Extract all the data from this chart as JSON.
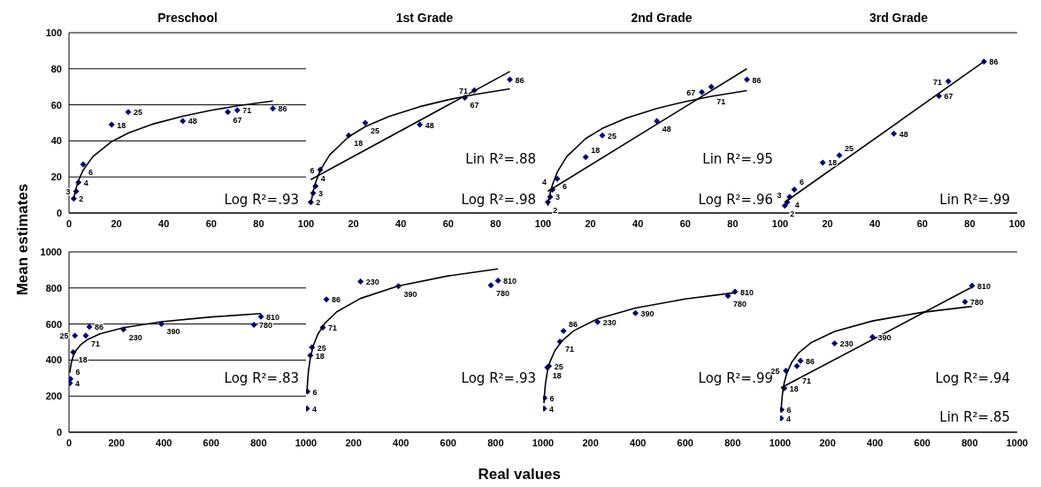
{
  "chart_data": [
    {
      "type": "scatter",
      "title": "Preschool",
      "ylabel": "Mean estimates",
      "xlim": [
        0,
        100
      ],
      "xticks": [
        0,
        20,
        40,
        60,
        80,
        100
      ],
      "ylim": [
        0,
        100
      ],
      "yticks": [
        0,
        20,
        40,
        60,
        80,
        100
      ],
      "grid": "y",
      "marker": "diamond",
      "annotations": [
        "Log R²=.93",
        {
          "text": "2",
          "x": 2,
          "y": 8
        },
        {
          "text": "3",
          "x": 3,
          "y": 12
        },
        {
          "text": "4",
          "x": 4,
          "y": 17
        },
        {
          "text": "6",
          "x": 6,
          "y": 27
        },
        {
          "text": "18",
          "x": 18,
          "y": 49
        },
        {
          "text": "25",
          "x": 25,
          "y": 56
        },
        {
          "text": "48",
          "x": 48,
          "y": 51
        },
        {
          "text": "67",
          "x": 67,
          "y": 56
        },
        {
          "text": "71",
          "x": 71,
          "y": 57
        },
        {
          "text": "86",
          "x": 86,
          "y": 58
        }
      ],
      "series": [
        {
          "color": "#000080",
          "x": [
            2,
            3,
            4,
            6,
            18,
            25,
            48,
            67,
            71,
            86
          ],
          "values": [
            8,
            12,
            17,
            27,
            49,
            56,
            51,
            56,
            57,
            58
          ]
        },
        {
          "type": "line",
          "color": "#000000",
          "marker": "none",
          "x": [
            2,
            3,
            4,
            6,
            10,
            18,
            25,
            35,
            48,
            60,
            71,
            86
          ],
          "values": [
            8,
            13.8,
            18,
            23.8,
            31.2,
            39.6,
            44.4,
            49.2,
            53.7,
            57,
            59.4,
            62.1
          ]
        }
      ]
    },
    {
      "type": "scatter",
      "title": "1st Grade",
      "xlim": [
        0,
        100
      ],
      "xticks": [
        20,
        40,
        60,
        80,
        100
      ],
      "ylim": [
        0,
        100
      ],
      "yticks": [
        0,
        20,
        40,
        60,
        80,
        100
      ],
      "tick_labels": "x",
      "grid": "y",
      "marker": "diamond",
      "annotations": [
        "Lin R²=.88",
        "Log R²=.98",
        {
          "text": "2",
          "x": 2,
          "y": 6
        },
        {
          "text": "3",
          "x": 3,
          "y": 11
        },
        {
          "text": "4",
          "x": 4,
          "y": 15
        },
        {
          "text": "6",
          "x": 6,
          "y": 24
        },
        {
          "text": "18",
          "x": 18,
          "y": 43
        },
        {
          "text": "25",
          "x": 25,
          "y": 50
        },
        {
          "text": "48",
          "x": 48,
          "y": 49
        },
        {
          "text": "67",
          "x": 67,
          "y": 64
        },
        {
          "text": "71",
          "x": 71,
          "y": 68
        },
        {
          "text": "86",
          "x": 86,
          "y": 74
        }
      ],
      "series": [
        {
          "color": "#000080",
          "x": [
            2,
            3,
            4,
            6,
            18,
            25,
            48,
            67,
            71,
            86
          ],
          "values": [
            6,
            11,
            15,
            24,
            43,
            50,
            49,
            64,
            68,
            74
          ]
        },
        {
          "type": "line",
          "color": "#000000",
          "marker": "none",
          "x": [
            2,
            3,
            4,
            6,
            10,
            18,
            25,
            35,
            48,
            60,
            71,
            86
          ],
          "values": [
            5,
            11.9,
            16.8,
            23.7,
            32.3,
            42.3,
            47.9,
            53.6,
            59,
            62.8,
            65.7,
            68.9
          ]
        },
        {
          "type": "line",
          "color": "#000000",
          "marker": "none",
          "x": [
            2,
            86
          ],
          "values": [
            18.5,
            78.5
          ]
        }
      ]
    },
    {
      "type": "scatter",
      "title": "2nd Grade",
      "xlim": [
        0,
        100
      ],
      "xticks": [
        20,
        40,
        60,
        80,
        100
      ],
      "ylim": [
        0,
        100
      ],
      "yticks": [
        0,
        20,
        40,
        60,
        80,
        100
      ],
      "tick_labels": "x",
      "grid": "y",
      "marker": "diamond",
      "annotations": [
        "Lin R²=.95",
        "Log R²=.96",
        {
          "text": "2",
          "x": 2,
          "y": 6
        },
        {
          "text": "3",
          "x": 3,
          "y": 9
        },
        {
          "text": "4",
          "x": 4,
          "y": 13
        },
        {
          "text": "6",
          "x": 6,
          "y": 19
        },
        {
          "text": "18",
          "x": 18,
          "y": 31
        },
        {
          "text": "25",
          "x": 25,
          "y": 43
        },
        {
          "text": "48",
          "x": 48,
          "y": 51
        },
        {
          "text": "67",
          "x": 67,
          "y": 67
        },
        {
          "text": "71",
          "x": 71,
          "y": 70
        },
        {
          "text": "86",
          "x": 86,
          "y": 74
        }
      ],
      "series": [
        {
          "color": "#000080",
          "x": [
            2,
            3,
            4,
            6,
            18,
            25,
            48,
            67,
            71,
            86
          ],
          "values": [
            6,
            9,
            13,
            19,
            31,
            43,
            51,
            67,
            70,
            74
          ]
        },
        {
          "type": "line",
          "color": "#000000",
          "marker": "none",
          "x": [
            2,
            3,
            4,
            6,
            10,
            18,
            25,
            35,
            48,
            60,
            71,
            86
          ],
          "values": [
            4,
            10.9,
            15.8,
            22.7,
            31.3,
            41.3,
            46.9,
            52.6,
            58,
            61.8,
            64.7,
            67.9
          ]
        },
        {
          "type": "line",
          "color": "#000000",
          "marker": "none",
          "x": [
            2,
            86
          ],
          "values": [
            12,
            80
          ]
        }
      ]
    },
    {
      "type": "scatter",
      "title": "3rd Grade",
      "xlim": [
        0,
        100
      ],
      "xticks": [
        20,
        40,
        60,
        80,
        100
      ],
      "ylim": [
        0,
        100
      ],
      "yticks": [
        0,
        20,
        40,
        60,
        80,
        100
      ],
      "tick_labels": "x",
      "grid": "y",
      "marker": "diamond",
      "annotations": [
        "Lin R²=.99",
        {
          "text": "2",
          "x": 2,
          "y": 4
        },
        {
          "text": "3",
          "x": 3,
          "y": 6
        },
        {
          "text": "4",
          "x": 4,
          "y": 9
        },
        {
          "text": "6",
          "x": 6,
          "y": 13
        },
        {
          "text": "18",
          "x": 18,
          "y": 28
        },
        {
          "text": "25",
          "x": 25,
          "y": 32
        },
        {
          "text": "48",
          "x": 48,
          "y": 44
        },
        {
          "text": "67",
          "x": 67,
          "y": 65
        },
        {
          "text": "71",
          "x": 71,
          "y": 73
        },
        {
          "text": "86",
          "x": 86,
          "y": 84
        }
      ],
      "series": [
        {
          "color": "#000080",
          "x": [
            2,
            3,
            4,
            6,
            18,
            25,
            48,
            67,
            71,
            86
          ],
          "values": [
            4,
            6,
            9,
            13,
            28,
            32,
            44,
            65,
            73,
            84
          ]
        },
        {
          "type": "line",
          "color": "#000000",
          "marker": "none",
          "x": [
            2,
            86
          ],
          "values": [
            6,
            84
          ]
        }
      ]
    },
    {
      "type": "scatter",
      "xlim": [
        0,
        1000
      ],
      "xticks": [
        0,
        200,
        400,
        600,
        800,
        1000
      ],
      "ylim": [
        0,
        1000
      ],
      "yticks": [
        0,
        200,
        400,
        600,
        800,
        1000
      ],
      "grid": "y",
      "marker": "diamond",
      "annotations": [
        "Log R²=.83",
        {
          "text": "4",
          "x": 4,
          "y": 272
        },
        {
          "text": "6",
          "x": 6,
          "y": 295
        },
        {
          "text": "18",
          "x": 18,
          "y": 444
        },
        {
          "text": "25",
          "x": 25,
          "y": 536
        },
        {
          "text": "71",
          "x": 71,
          "y": 536
        },
        {
          "text": "86",
          "x": 86,
          "y": 585
        },
        {
          "text": "230",
          "x": 230,
          "y": 570
        },
        {
          "text": "390",
          "x": 390,
          "y": 601
        },
        {
          "text": "780",
          "x": 780,
          "y": 596
        },
        {
          "text": "810",
          "x": 810,
          "y": 641
        }
      ],
      "series": [
        {
          "color": "#000080",
          "x": [
            4,
            6,
            18,
            25,
            71,
            86,
            230,
            390,
            780,
            810
          ],
          "values": [
            272,
            295,
            444,
            536,
            536,
            585,
            570,
            601,
            596,
            641
          ]
        },
        {
          "type": "line",
          "color": "#000000",
          "marker": "none",
          "x": [
            4,
            6,
            10,
            18,
            30,
            50,
            80,
            130,
            230,
            390,
            600,
            810
          ],
          "values": [
            330,
            355,
            386,
            423,
            454,
            486,
            515,
            545,
            580,
            613,
            639,
            658
          ]
        }
      ]
    },
    {
      "type": "scatter",
      "xlabel": "Real values",
      "xlim": [
        0,
        1000
      ],
      "xticks": [
        200,
        400,
        600,
        800,
        1000
      ],
      "ylim": [
        0,
        1000
      ],
      "yticks": [
        0,
        200,
        400,
        600,
        800,
        1000
      ],
      "tick_labels": "x",
      "grid": "y",
      "marker": "diamond",
      "annotations": [
        "Log R²=.93",
        {
          "text": "4",
          "x": 4,
          "y": 131
        },
        {
          "text": "6",
          "x": 6,
          "y": 225
        },
        {
          "text": "18",
          "x": 18,
          "y": 425
        },
        {
          "text": "25",
          "x": 25,
          "y": 470
        },
        {
          "text": "71",
          "x": 71,
          "y": 581
        },
        {
          "text": "86",
          "x": 86,
          "y": 737
        },
        {
          "text": "230",
          "x": 230,
          "y": 836
        },
        {
          "text": "390",
          "x": 390,
          "y": 810
        },
        {
          "text": "780",
          "x": 780,
          "y": 815
        },
        {
          "text": "810",
          "x": 810,
          "y": 841
        }
      ],
      "series": [
        {
          "color": "#000080",
          "x": [
            4,
            6,
            18,
            25,
            71,
            86,
            230,
            390,
            780,
            810
          ],
          "values": [
            131,
            225,
            425,
            470,
            581,
            737,
            836,
            810,
            815,
            841
          ]
        },
        {
          "type": "line",
          "color": "#000000",
          "marker": "none",
          "x": [
            4,
            6,
            10,
            18,
            30,
            50,
            80,
            130,
            230,
            390,
            600,
            810
          ],
          "values": [
            215,
            268,
            334,
            411,
            477,
            544,
            605,
            668,
            742,
            811,
            867,
            906
          ]
        }
      ]
    },
    {
      "type": "scatter",
      "xlim": [
        0,
        1000
      ],
      "xticks": [
        200,
        400,
        600,
        800,
        1000
      ],
      "ylim": [
        0,
        1000
      ],
      "yticks": [
        0,
        200,
        400,
        600,
        800,
        1000
      ],
      "tick_labels": "x",
      "grid": "y",
      "marker": "diamond",
      "annotations": [
        "Log R²=.99",
        {
          "text": "4",
          "x": 4,
          "y": 131
        },
        {
          "text": "6",
          "x": 6,
          "y": 190
        },
        {
          "text": "18",
          "x": 18,
          "y": 359
        },
        {
          "text": "25",
          "x": 25,
          "y": 366
        },
        {
          "text": "71",
          "x": 71,
          "y": 503
        },
        {
          "text": "86",
          "x": 86,
          "y": 561
        },
        {
          "text": "230",
          "x": 230,
          "y": 612
        },
        {
          "text": "390",
          "x": 390,
          "y": 660
        },
        {
          "text": "780",
          "x": 780,
          "y": 756
        },
        {
          "text": "810",
          "x": 810,
          "y": 779
        }
      ],
      "series": [
        {
          "color": "#000080",
          "x": [
            4,
            6,
            18,
            25,
            71,
            86,
            230,
            390,
            780,
            810
          ],
          "values": [
            131,
            190,
            359,
            366,
            503,
            561,
            612,
            660,
            756,
            779
          ]
        },
        {
          "type": "line",
          "color": "#000000",
          "marker": "none",
          "x": [
            4,
            6,
            10,
            18,
            30,
            50,
            80,
            130,
            230,
            390,
            600,
            810
          ],
          "values": [
            161,
            208,
            267,
            335,
            393,
            452,
            507,
            563,
            629,
            689,
            739,
            774
          ]
        }
      ]
    },
    {
      "type": "scatter",
      "xlim": [
        0,
        1000
      ],
      "xticks": [
        200,
        400,
        600,
        800,
        1000
      ],
      "ylim": [
        0,
        1000
      ],
      "yticks": [
        0,
        200,
        400,
        600,
        800,
        1000
      ],
      "tick_labels": "x",
      "grid": "y",
      "marker": "diamond",
      "annotations": [
        "Log R²=.94",
        "Lin R²=.85",
        {
          "text": "4",
          "x": 4,
          "y": 77
        },
        {
          "text": "6",
          "x": 6,
          "y": 125
        },
        {
          "text": "18",
          "x": 18,
          "y": 244
        },
        {
          "text": "25",
          "x": 25,
          "y": 341
        },
        {
          "text": "71",
          "x": 71,
          "y": 366
        },
        {
          "text": "86",
          "x": 86,
          "y": 396
        },
        {
          "text": "230",
          "x": 230,
          "y": 493
        },
        {
          "text": "390",
          "x": 390,
          "y": 528
        },
        {
          "text": "780",
          "x": 780,
          "y": 723
        },
        {
          "text": "810",
          "x": 810,
          "y": 812
        }
      ],
      "series": [
        {
          "color": "#000080",
          "x": [
            4,
            6,
            18,
            25,
            71,
            86,
            230,
            390,
            780,
            810
          ],
          "values": [
            77,
            125,
            244,
            341,
            366,
            396,
            493,
            528,
            723,
            812
          ]
        },
        {
          "type": "line",
          "color": "#000000",
          "marker": "none",
          "x": [
            4,
            6,
            10,
            18,
            30,
            50,
            80,
            130,
            230,
            390,
            600,
            810
          ],
          "values": [
            110,
            155,
            212,
            277,
            333,
            390,
            442,
            496,
            559,
            617,
            665,
            698
          ]
        },
        {
          "type": "line",
          "color": "#000000",
          "marker": "none",
          "x": [
            4,
            810
          ],
          "values": [
            246,
            805
          ]
        }
      ]
    }
  ]
}
